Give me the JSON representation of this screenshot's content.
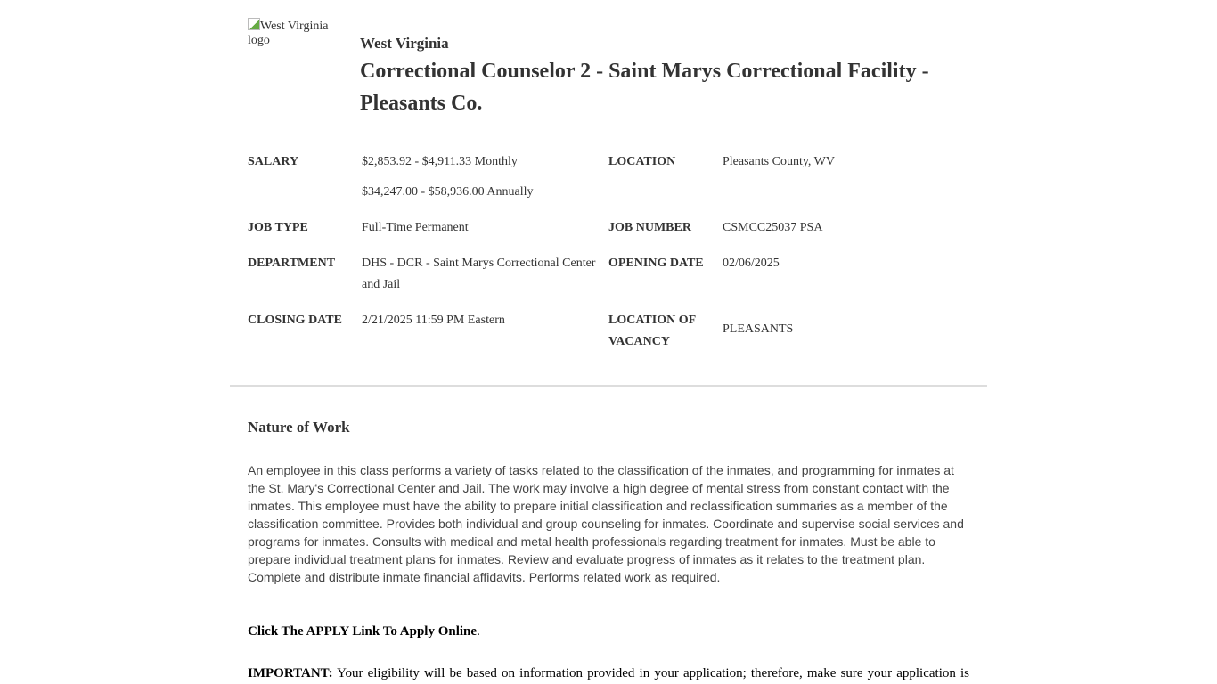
{
  "logo": {
    "alt": "West Virginia logo"
  },
  "header": {
    "agency": "West Virginia",
    "title": "Correctional Counselor 2 - Saint Marys Correctional Facility - Pleasants Co."
  },
  "info": {
    "salary_label": "SALARY",
    "salary_monthly": "$2,853.92 - $4,911.33 Monthly",
    "salary_annual": "$34,247.00 - $58,936.00 Annually",
    "location_label": "LOCATION",
    "location": "Pleasants County, WV",
    "job_type_label": "JOB TYPE",
    "job_type": "Full-Time Permanent",
    "job_number_label": "JOB NUMBER",
    "job_number": "CSMCC25037 PSA",
    "department_label": "DEPARTMENT",
    "department": "DHS - DCR - Saint Marys Correctional Center and Jail",
    "opening_date_label": "OPENING DATE",
    "opening_date": "02/06/2025",
    "closing_date_label": "CLOSING DATE",
    "closing_date": "2/21/2025 11:59 PM Eastern",
    "location_of_vacancy_label": "LOCATION OF VACANCY",
    "location_of_vacancy": "PLEASANTS"
  },
  "nature_of_work": {
    "heading": "Nature of Work",
    "body": "An employee in this class performs a variety of tasks related to the classification of the inmates, and programming for inmates at the St. Mary's Correctional Center and Jail. The work may involve a high degree of mental stress from constant contact with the inmates. This employee must have the ability to prepare initial classification and reclassification summaries as a member of the classification committee. Provides both individual and group counseling for inmates. Coordinate and supervise social services and programs for inmates. Consults with medical and metal health professionals regarding treatment for inmates. Must be able to prepare individual treatment plans for inmates. Review and evaluate progress of inmates as it relates to the treatment plan. Complete and distribute inmate financial affidavits. Performs related work as required.",
    "apply_bold": "Click The APPLY Link To Apply Online",
    "apply_tail": ".",
    "important_label": "IMPORTANT:",
    "important_text": " Your eligibility will be based on information provided in your application; therefore, make sure your application is"
  }
}
